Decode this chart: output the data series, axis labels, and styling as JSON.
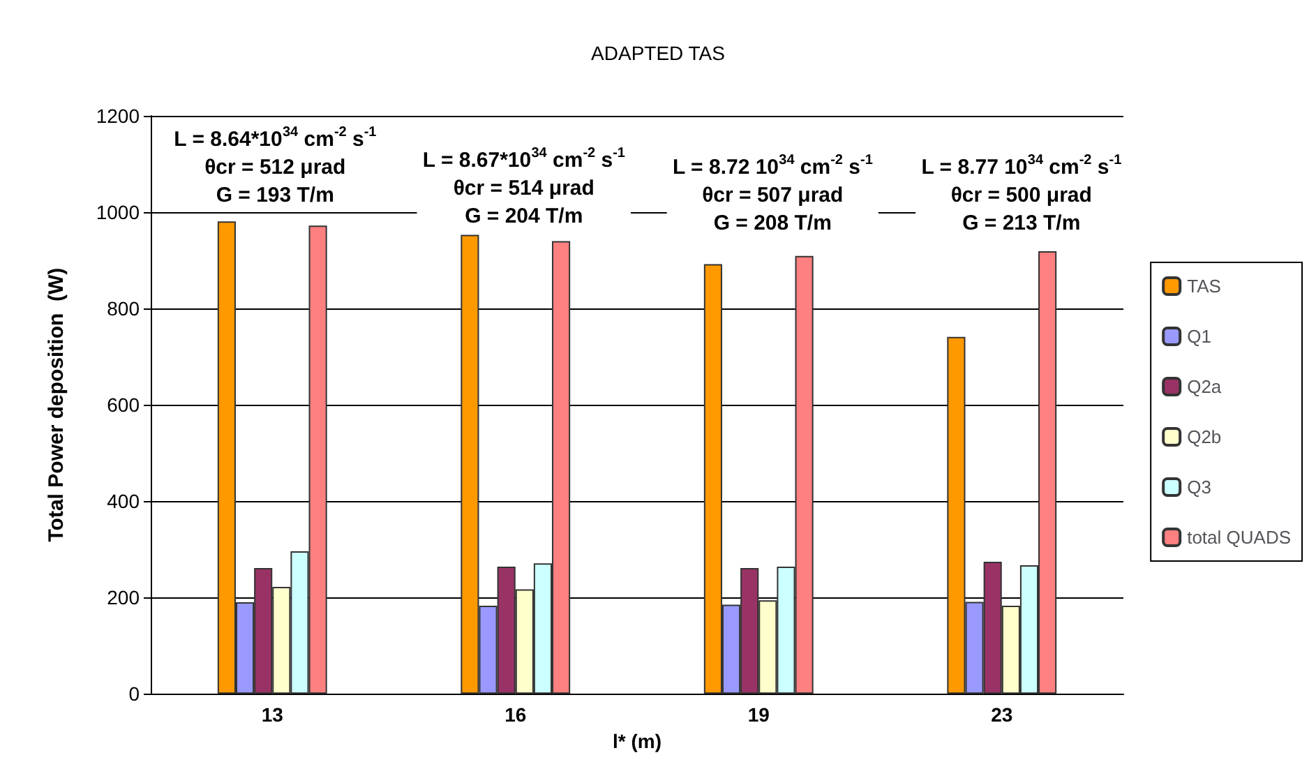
{
  "chart_data": {
    "type": "bar",
    "title": "ADAPTED TAS",
    "xlabel": "l* (m)",
    "ylabel": "Total Power deposition  (W)",
    "categories": [
      "13",
      "16",
      "19",
      "23"
    ],
    "series": [
      {
        "name": "TAS",
        "color": "#ff9900",
        "values": [
          981,
          953,
          892,
          741
        ]
      },
      {
        "name": "Q1",
        "color": "#9999ff",
        "values": [
          190,
          183,
          185,
          191
        ]
      },
      {
        "name": "Q2a",
        "color": "#993366",
        "values": [
          261,
          264,
          261,
          274
        ]
      },
      {
        "name": "Q2b",
        "color": "#ffffcc",
        "values": [
          222,
          217,
          194,
          183
        ]
      },
      {
        "name": "Q3",
        "color": "#ccffff",
        "values": [
          296,
          271,
          264,
          267
        ]
      },
      {
        "name": "total QUADS",
        "color": "#ff8080",
        "values": [
          972,
          940,
          909,
          919
        ]
      }
    ],
    "ylim": [
      0,
      1200
    ],
    "yticks": [
      0,
      200,
      400,
      600,
      800,
      1000,
      1200
    ],
    "grid": "y",
    "legend": "right",
    "annotations": [
      "L = 8.64*10$^{34}$ cm$^{-2}$ s$^{-1}$\nθcr = 512 μrad\nG = 193 T/m",
      "L = 8.67*10$^{34}$ cm$^{-2}$ s$^{-1}$\nθcr = 514 μrad\nG = 204 T/m",
      "L = 8.72 10$^{34}$ cm$^{-2}$ s$^{-1}$\nθcr = 507 μrad\nG = 208 T/m",
      "L = 8.77 10$^{34}$ cm$^{-2}$ s$^{-1}$\nθcr = 500 μrad\nG = 213 T/m"
    ]
  }
}
